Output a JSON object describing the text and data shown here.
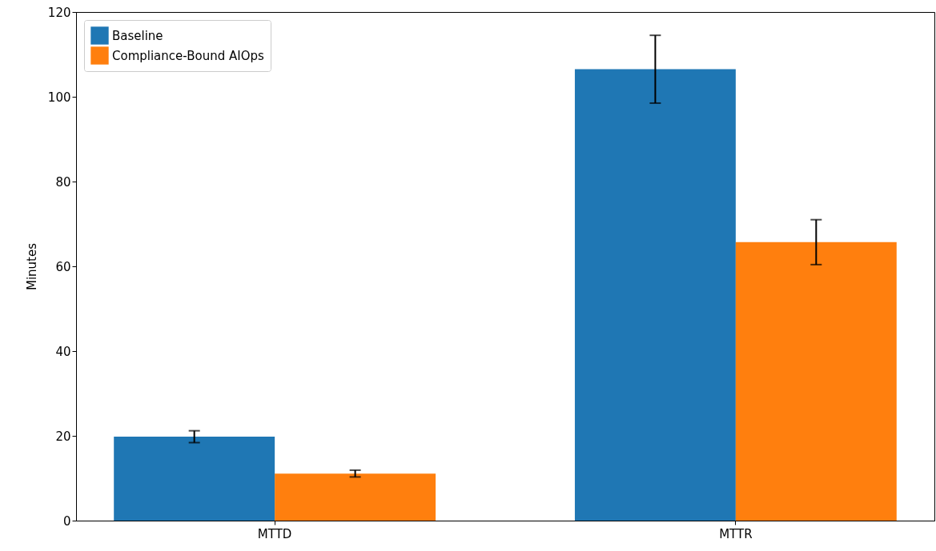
{
  "chart_data": {
    "type": "bar",
    "ylabel": "Minutes",
    "categories": [
      "MTTD",
      "MTTR"
    ],
    "series": [
      {
        "name": "Baseline",
        "color": "#1f77b4",
        "values": [
          19.8,
          106.5
        ],
        "errors": [
          1.4,
          8.0
        ]
      },
      {
        "name": "Compliance-Bound AIOps",
        "color": "#ff7f0e",
        "values": [
          11.1,
          65.7
        ],
        "errors": [
          0.8,
          5.3
        ]
      }
    ],
    "ylim": [
      0,
      120
    ],
    "yticks": [
      0,
      20,
      40,
      60,
      80,
      100,
      120
    ],
    "grid": false,
    "legend": "top left"
  }
}
